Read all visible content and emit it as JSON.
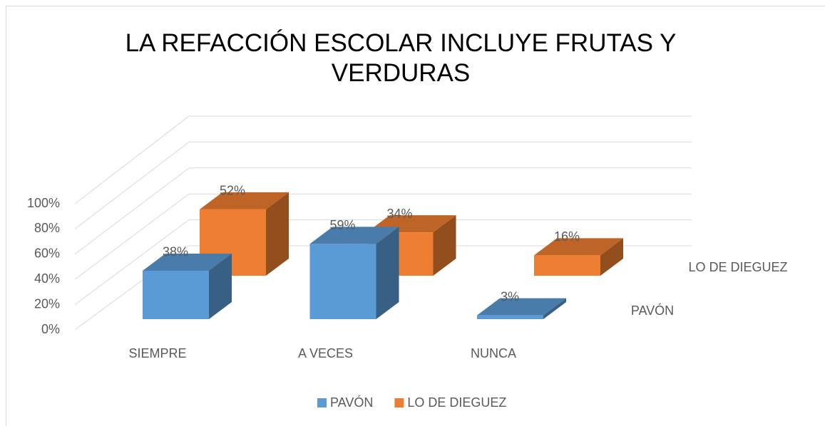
{
  "chart_data": {
    "type": "bar3d",
    "title": "LA REFACCIÓN ESCOLAR INCLUYE FRUTAS Y VERDURAS",
    "categories": [
      "SIEMPRE",
      "A VECES",
      "NUNCA"
    ],
    "series": [
      {
        "name": "PAVÓN",
        "color": "#5b9bd5",
        "values": [
          38,
          59,
          3
        ],
        "value_labels": [
          "38%",
          "59%",
          "3%"
        ]
      },
      {
        "name": "LO DE DIEGUEZ",
        "color": "#ed7d31",
        "values": [
          52,
          34,
          16
        ],
        "value_labels": [
          "52%",
          "34%",
          "16%"
        ]
      }
    ],
    "ylim": [
      0,
      100
    ],
    "yticks": [
      {
        "value": 0,
        "label": "0%"
      },
      {
        "value": 20,
        "label": "20%"
      },
      {
        "value": 40,
        "label": "40%"
      },
      {
        "value": 60,
        "label": "60%"
      },
      {
        "value": 80,
        "label": "80%"
      },
      {
        "value": 100,
        "label": "100%"
      }
    ],
    "grid": true,
    "legend": "bottom"
  }
}
